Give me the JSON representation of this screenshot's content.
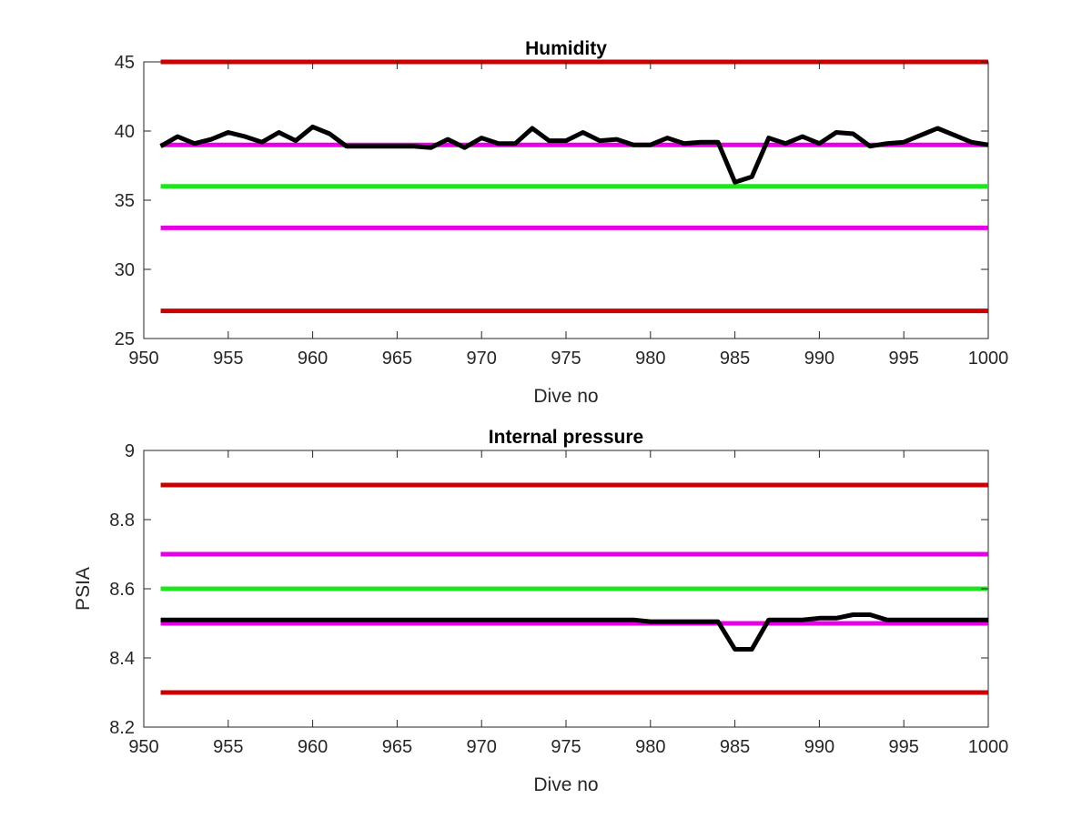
{
  "chart_data": [
    {
      "type": "line",
      "title": "Humidity",
      "xlabel": "Dive no",
      "ylabel": "",
      "xlim": [
        950,
        1000
      ],
      "ylim": [
        25,
        45
      ],
      "xticks": [
        950,
        955,
        960,
        965,
        970,
        975,
        980,
        985,
        990,
        995,
        1000
      ],
      "yticks": [
        25,
        30,
        35,
        40,
        45
      ],
      "grid": false,
      "series": [
        {
          "color": "#000000",
          "x": [
            951,
            952,
            953,
            954,
            955,
            956,
            957,
            958,
            959,
            960,
            961,
            962,
            963,
            964,
            965,
            966,
            967,
            968,
            969,
            970,
            971,
            972,
            973,
            974,
            975,
            976,
            977,
            978,
            979,
            980,
            981,
            982,
            983,
            984,
            985,
            986,
            987,
            988,
            989,
            990,
            991,
            992,
            993,
            994,
            995,
            996,
            997,
            998,
            999,
            1000
          ],
          "y": [
            38.9,
            39.6,
            39.1,
            39.4,
            39.9,
            39.6,
            39.2,
            39.9,
            39.3,
            40.3,
            39.8,
            38.9,
            38.9,
            38.9,
            38.9,
            38.9,
            38.8,
            39.4,
            38.8,
            39.5,
            39.1,
            39.1,
            40.2,
            39.3,
            39.3,
            39.9,
            39.3,
            39.4,
            39.0,
            39.0,
            39.5,
            39.1,
            39.2,
            39.2,
            36.3,
            36.7,
            39.5,
            39.1,
            39.6,
            39.1,
            39.9,
            39.8,
            38.9,
            39.1,
            39.2,
            39.7,
            40.2,
            39.7,
            39.2,
            39.0
          ]
        }
      ],
      "reference_lines": [
        {
          "y": 45,
          "color": "#cc0000"
        },
        {
          "y": 39,
          "color": "#e600e6"
        },
        {
          "y": 36,
          "color": "#1ee61e"
        },
        {
          "y": 33,
          "color": "#e600e6"
        },
        {
          "y": 27,
          "color": "#cc0000"
        }
      ]
    },
    {
      "type": "line",
      "title": "Internal pressure",
      "xlabel": "Dive no",
      "ylabel": "PSIA",
      "xlim": [
        950,
        1000
      ],
      "ylim": [
        8.2,
        9
      ],
      "xticks": [
        950,
        955,
        960,
        965,
        970,
        975,
        980,
        985,
        990,
        995,
        1000
      ],
      "yticks": [
        "8.2",
        "8.4",
        "8.6",
        "8.8",
        "9"
      ],
      "grid": false,
      "series": [
        {
          "color": "#000000",
          "x": [
            951,
            952,
            953,
            954,
            955,
            956,
            957,
            958,
            959,
            960,
            961,
            962,
            963,
            964,
            965,
            966,
            967,
            968,
            969,
            970,
            971,
            972,
            973,
            974,
            975,
            976,
            977,
            978,
            979,
            980,
            981,
            982,
            983,
            984,
            985,
            986,
            987,
            988,
            989,
            990,
            991,
            992,
            993,
            994,
            995,
            996,
            997,
            998,
            999,
            1000
          ],
          "y": [
            8.51,
            8.51,
            8.51,
            8.51,
            8.51,
            8.51,
            8.51,
            8.51,
            8.51,
            8.51,
            8.51,
            8.51,
            8.51,
            8.51,
            8.51,
            8.51,
            8.51,
            8.51,
            8.51,
            8.51,
            8.51,
            8.51,
            8.51,
            8.51,
            8.51,
            8.51,
            8.51,
            8.51,
            8.51,
            8.505,
            8.505,
            8.505,
            8.505,
            8.505,
            8.425,
            8.425,
            8.51,
            8.51,
            8.51,
            8.515,
            8.515,
            8.525,
            8.525,
            8.51,
            8.51,
            8.51,
            8.51,
            8.51,
            8.51,
            8.51
          ]
        }
      ],
      "reference_lines": [
        {
          "y": 8.9,
          "color": "#cc0000"
        },
        {
          "y": 8.7,
          "color": "#e600e6"
        },
        {
          "y": 8.6,
          "color": "#1ee61e"
        },
        {
          "y": 8.5,
          "color": "#e600e6"
        },
        {
          "y": 8.3,
          "color": "#cc0000"
        }
      ]
    }
  ]
}
